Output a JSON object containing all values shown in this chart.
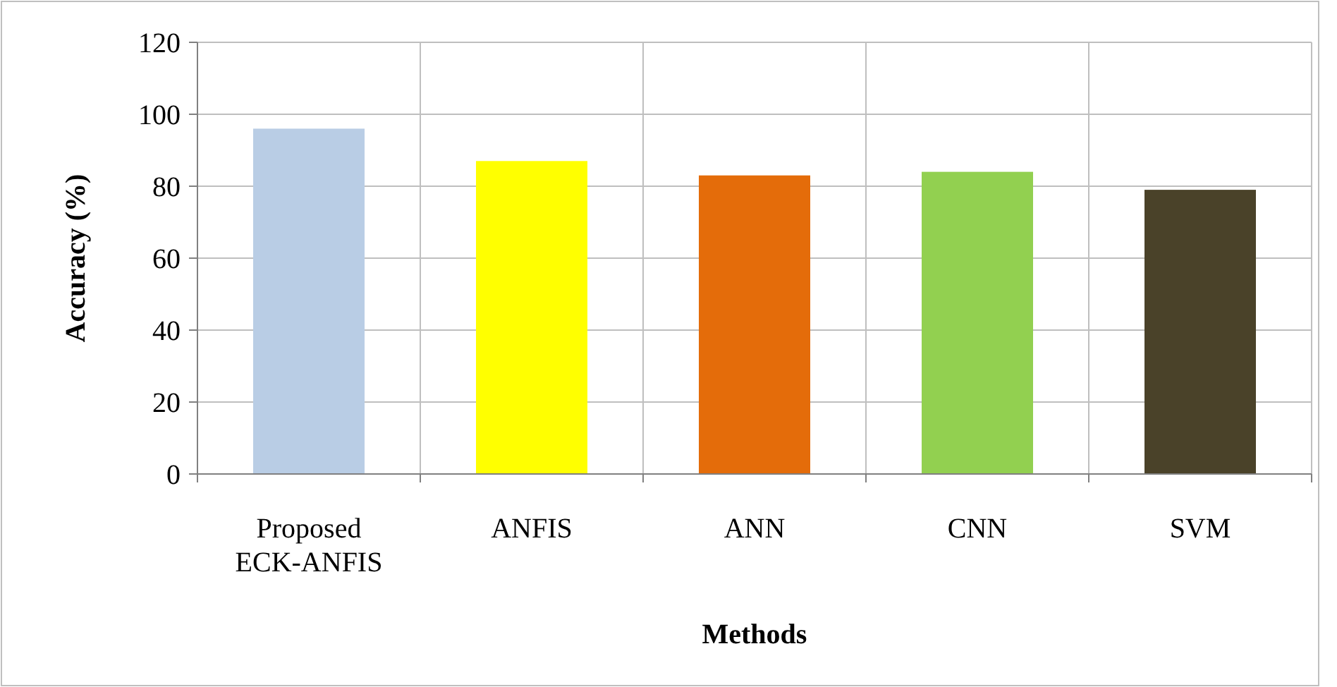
{
  "chart_data": {
    "type": "bar",
    "xlabel": "Methods",
    "ylabel": "Accuracy (%)",
    "categories": [
      "Proposed\nECK-ANFIS",
      "ANFIS",
      "ANN",
      "CNN",
      "SVM"
    ],
    "values": [
      96,
      87,
      83,
      84,
      79
    ],
    "colors": [
      "#b9cde5",
      "#ffff00",
      "#e46c0a",
      "#92d050",
      "#4a4229"
    ],
    "ylim": [
      0,
      120
    ],
    "yticks": [
      0,
      20,
      40,
      60,
      80,
      100,
      120
    ],
    "grid": true
  }
}
